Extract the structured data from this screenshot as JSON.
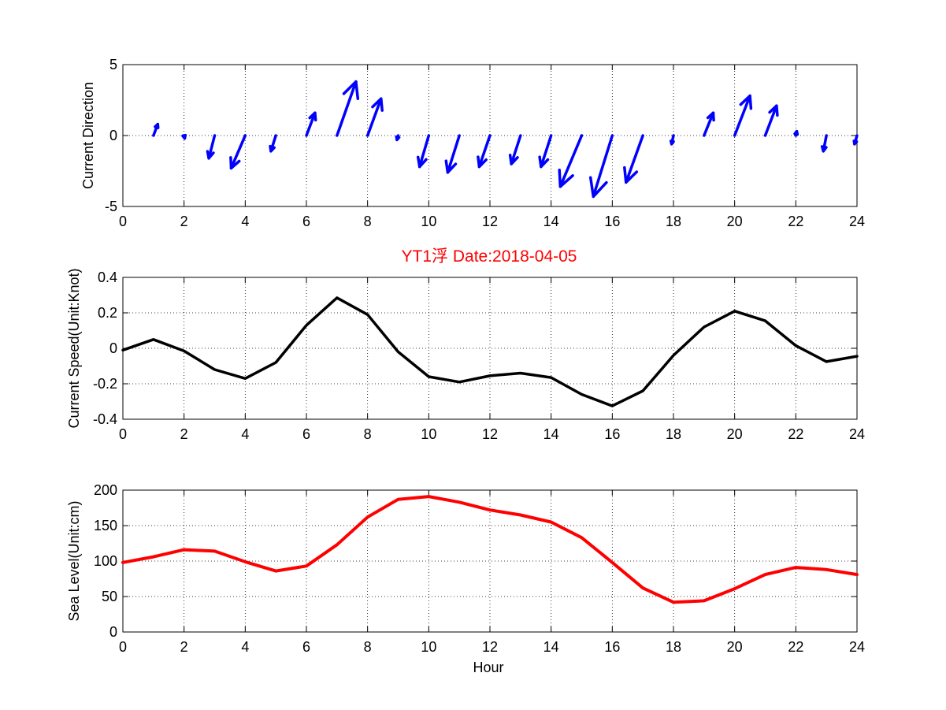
{
  "figure": {
    "title": "YT1浮   Date:2018-04-05",
    "title_color": "#ff0000",
    "xlabel": "Hour"
  },
  "chart_data": [
    {
      "type": "quiver",
      "ylabel": "Current Direction",
      "color": "#0000ff",
      "xlim": [
        0,
        24
      ],
      "ylim": [
        -5,
        5
      ],
      "xticks": [
        0,
        2,
        4,
        6,
        8,
        10,
        12,
        14,
        16,
        18,
        20,
        22,
        24
      ],
      "yticks": [
        -5,
        0,
        5
      ],
      "grid": true,
      "x": [
        1,
        2,
        3,
        4,
        5,
        6,
        7,
        8,
        9,
        10,
        11,
        12,
        13,
        14,
        15,
        16,
        17,
        18,
        19,
        20,
        21,
        22,
        23,
        24
      ],
      "u": [
        0.14,
        0.02,
        -0.19,
        -0.46,
        -0.16,
        0.28,
        0.62,
        0.44,
        -0.04,
        -0.3,
        -0.38,
        -0.35,
        -0.3,
        -0.33,
        -0.7,
        -0.62,
        -0.55,
        -0.06,
        0.3,
        0.5,
        0.37,
        0.03,
        -0.1,
        -0.08
      ],
      "v": [
        0.8,
        -0.2,
        -1.6,
        -2.3,
        -1.1,
        1.6,
        3.8,
        2.6,
        -0.3,
        -2.2,
        -2.6,
        -2.2,
        -2.0,
        -2.2,
        -3.6,
        -4.3,
        -3.3,
        -0.6,
        1.6,
        2.8,
        2.1,
        0.3,
        -1.1,
        -0.6
      ]
    },
    {
      "type": "line",
      "ylabel": "Current Speed(Unit:Knot)",
      "color": "#000000",
      "xlim": [
        0,
        24
      ],
      "ylim": [
        -0.4,
        0.4
      ],
      "xticks": [
        0,
        2,
        4,
        6,
        8,
        10,
        12,
        14,
        16,
        18,
        20,
        22,
        24
      ],
      "yticks": [
        -0.4,
        -0.2,
        0,
        0.2,
        0.4
      ],
      "grid": true,
      "x": [
        0,
        1,
        2,
        3,
        4,
        5,
        6,
        7,
        8,
        9,
        10,
        11,
        12,
        13,
        14,
        15,
        16,
        17,
        18,
        19,
        20,
        21,
        22,
        23,
        24
      ],
      "y": [
        -0.01,
        0.05,
        -0.015,
        -0.12,
        -0.17,
        -0.08,
        0.13,
        0.285,
        0.19,
        -0.02,
        -0.16,
        -0.19,
        -0.155,
        -0.14,
        -0.165,
        -0.26,
        -0.325,
        -0.24,
        -0.04,
        0.12,
        0.21,
        0.155,
        0.015,
        -0.075,
        -0.045
      ]
    },
    {
      "type": "line",
      "ylabel": "Sea Level(Unit:cm)",
      "xlabel": "Hour",
      "color": "#ff0000",
      "xlim": [
        0,
        24
      ],
      "ylim": [
        0,
        200
      ],
      "xticks": [
        0,
        2,
        4,
        6,
        8,
        10,
        12,
        14,
        16,
        18,
        20,
        22,
        24
      ],
      "yticks": [
        0,
        50,
        100,
        150,
        200
      ],
      "grid": true,
      "x": [
        0,
        1,
        2,
        3,
        4,
        5,
        6,
        7,
        8,
        9,
        10,
        11,
        12,
        13,
        14,
        15,
        16,
        17,
        18,
        19,
        20,
        21,
        22,
        23,
        24
      ],
      "y": [
        98,
        106,
        116,
        114,
        99,
        86,
        93,
        123,
        162,
        187,
        191,
        183,
        172,
        165,
        155,
        133,
        98,
        62,
        42,
        44,
        61,
        81,
        91,
        88,
        81
      ]
    }
  ]
}
